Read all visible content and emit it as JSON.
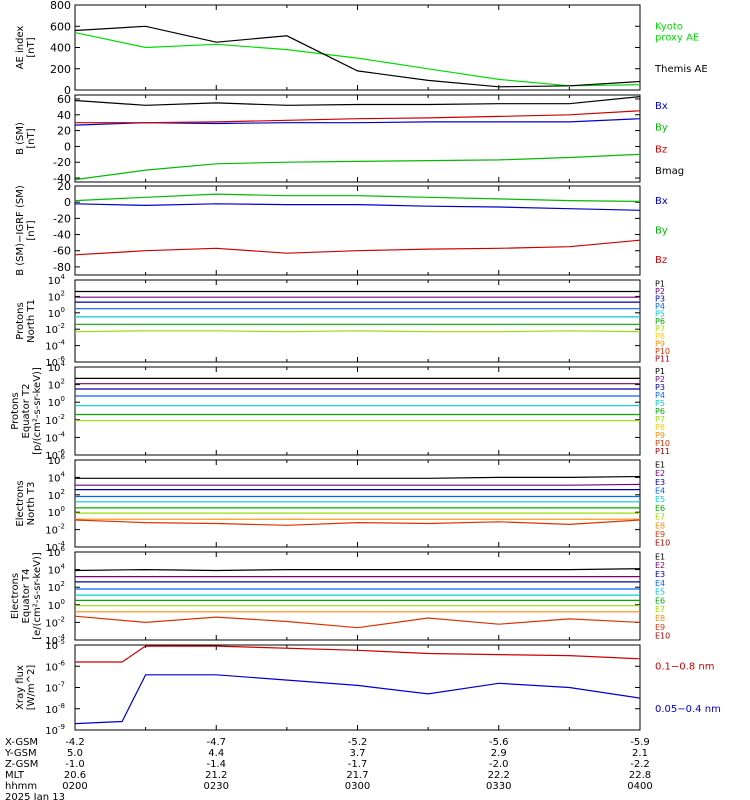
{
  "chart_data": [
    {
      "type": "line",
      "ylabel": "AE index\n[nT]",
      "ylim": [
        0,
        800
      ],
      "yscale": "linear",
      "yticks": [
        "800",
        "600",
        "400",
        "200",
        "0"
      ],
      "x": [
        "0200",
        "0215",
        "0230",
        "0245",
        "0300",
        "0315",
        "0330",
        "0345",
        "0400"
      ],
      "series": [
        {
          "name": "Kyoto\nproxy AE",
          "color": "#00dd00",
          "values": [
            540,
            400,
            430,
            380,
            300,
            200,
            100,
            40,
            50
          ]
        },
        {
          "name": "Themis AE",
          "color": "#000000",
          "values": [
            560,
            600,
            450,
            510,
            180,
            90,
            30,
            40,
            80
          ]
        }
      ]
    },
    {
      "type": "line",
      "ylabel": "B  (SM)\n[nT]",
      "ylim": [
        -45,
        65
      ],
      "yscale": "linear",
      "yticks": [
        "60",
        "40",
        "20",
        "0",
        "-20",
        "-40"
      ],
      "x": [
        "0200",
        "0215",
        "0230",
        "0245",
        "0300",
        "0315",
        "0330",
        "0345",
        "0400"
      ],
      "series": [
        {
          "name": "Bx",
          "color": "#0000cc",
          "values": [
            27,
            30,
            29,
            30,
            30,
            31,
            31,
            31,
            35
          ]
        },
        {
          "name": "By",
          "color": "#00bb00",
          "values": [
            -42,
            -30,
            -22,
            -20,
            -19,
            -18,
            -17,
            -14,
            -10
          ]
        },
        {
          "name": "Bz",
          "color": "#cc0000",
          "values": [
            30,
            30,
            31,
            33,
            35,
            36,
            38,
            40,
            45
          ]
        },
        {
          "name": "Bmag",
          "color": "#000000",
          "values": [
            58,
            52,
            55,
            52,
            53,
            53,
            54,
            54,
            63
          ]
        }
      ]
    },
    {
      "type": "line",
      "ylabel": "B (SM)−IGRF (SM)\n[nT]",
      "ylim": [
        -90,
        20
      ],
      "yscale": "linear",
      "yticks": [
        "20",
        "0",
        "-20",
        "-40",
        "-60",
        "-80"
      ],
      "x": [
        "0200",
        "0215",
        "0230",
        "0245",
        "0300",
        "0315",
        "0330",
        "0345",
        "0400"
      ],
      "series": [
        {
          "name": "Bx",
          "color": "#0000cc",
          "values": [
            -2,
            -4,
            -2,
            -3,
            -3,
            -5,
            -6,
            -8,
            -10
          ]
        },
        {
          "name": "By",
          "color": "#00bb00",
          "values": [
            2,
            6,
            10,
            8,
            8,
            6,
            4,
            2,
            1
          ]
        },
        {
          "name": "Bz",
          "color": "#cc0000",
          "values": [
            -65,
            -60,
            -57,
            -63,
            -60,
            -58,
            -57,
            -55,
            -47
          ]
        }
      ]
    },
    {
      "type": "line",
      "ylabel": "Protons\nNorth T1",
      "ylim": [
        -6,
        4
      ],
      "yscale": "log",
      "yticks": [
        "4",
        "2",
        "0",
        "-2",
        "-4",
        "-6"
      ],
      "x": [
        "0200",
        "0215",
        "0230",
        "0245",
        "0300",
        "0315",
        "0330",
        "0345",
        "0400"
      ],
      "series": [
        {
          "name": "P1",
          "color": "#000000",
          "values": [
            2.6,
            2.6,
            2.6,
            2.6,
            2.6,
            2.6,
            2.6,
            2.6,
            2.6
          ]
        },
        {
          "name": "P2",
          "color": "#770077",
          "values": [
            1.9,
            1.9,
            1.9,
            1.9,
            1.9,
            1.9,
            1.9,
            1.9,
            1.9
          ]
        },
        {
          "name": "P3",
          "color": "#0000aa",
          "values": [
            1.3,
            1.3,
            1.3,
            1.3,
            1.3,
            1.3,
            1.3,
            1.3,
            1.3
          ]
        },
        {
          "name": "P4",
          "color": "#0066ff",
          "values": [
            0.5,
            0.5,
            0.5,
            0.5,
            0.5,
            0.5,
            0.5,
            0.5,
            0.5
          ]
        },
        {
          "name": "P5",
          "color": "#00cccc",
          "values": [
            -0.5,
            -0.5,
            -0.5,
            -0.5,
            -0.5,
            -0.5,
            -0.5,
            -0.5,
            -0.5
          ]
        },
        {
          "name": "P6",
          "color": "#00aa00",
          "values": [
            -1.4,
            -1.4,
            -1.4,
            -1.4,
            -1.4,
            -1.4,
            -1.4,
            -1.4,
            -1.4
          ]
        },
        {
          "name": "P7",
          "color": "#99dd00",
          "values": [
            -2.3,
            -2.2,
            -2.2,
            -2.3,
            -2.2,
            -2.3,
            -2.3,
            -2.2,
            -2.3
          ]
        },
        {
          "name": "P8",
          "color": "#ffcc00",
          "values": [
            -3.4,
            null,
            null,
            null,
            -3.5,
            null,
            -3.4,
            null,
            -3.5
          ]
        },
        {
          "name": "P9",
          "color": "#ff8800",
          "values": [
            null,
            null,
            null,
            null,
            null,
            null,
            null,
            null,
            null
          ]
        },
        {
          "name": "P10",
          "color": "#dd3300",
          "values": [
            null,
            null,
            null,
            null,
            null,
            null,
            null,
            null,
            null
          ]
        },
        {
          "name": "P11",
          "color": "#aa0000",
          "values": [
            null,
            null,
            null,
            null,
            null,
            null,
            null,
            null,
            null
          ]
        }
      ]
    },
    {
      "type": "line",
      "ylabel": "Protons\nEquator T2\n[p/(cm²-s-sr-keV)]",
      "ylim": [
        -6,
        4
      ],
      "yscale": "log",
      "yticks": [
        "4",
        "2",
        "0",
        "-2",
        "-4",
        "-6"
      ],
      "x": [
        "0200",
        "0215",
        "0230",
        "0245",
        "0300",
        "0315",
        "0330",
        "0345",
        "0400"
      ],
      "series": [
        {
          "name": "P1",
          "color": "#000000",
          "values": [
            2.7,
            2.7,
            2.7,
            2.7,
            2.7,
            2.7,
            2.7,
            2.7,
            2.7
          ]
        },
        {
          "name": "P2",
          "color": "#770077",
          "values": [
            2.1,
            2.1,
            2.1,
            2.1,
            2.1,
            2.1,
            2.1,
            2.1,
            2.1
          ]
        },
        {
          "name": "P3",
          "color": "#0000aa",
          "values": [
            1.5,
            1.5,
            1.5,
            1.5,
            1.5,
            1.5,
            1.5,
            1.5,
            1.5
          ]
        },
        {
          "name": "P4",
          "color": "#0066ff",
          "values": [
            0.7,
            0.7,
            0.7,
            0.7,
            0.7,
            0.7,
            0.7,
            0.7,
            0.7
          ]
        },
        {
          "name": "P5",
          "color": "#00cccc",
          "values": [
            -0.4,
            -0.4,
            -0.4,
            -0.4,
            -0.4,
            -0.4,
            -0.4,
            -0.4,
            -0.4
          ]
        },
        {
          "name": "P6",
          "color": "#00aa00",
          "values": [
            -1.4,
            -1.4,
            -1.4,
            -1.4,
            -1.4,
            -1.4,
            -1.4,
            -1.4,
            -1.4
          ]
        },
        {
          "name": "P7",
          "color": "#99dd00",
          "values": [
            -2.1,
            -2.1,
            -2.1,
            -2.1,
            -2.1,
            -2.1,
            -2.1,
            -2.1,
            -2.1
          ]
        },
        {
          "name": "P8",
          "color": "#ffcc00",
          "values": [
            -3.4,
            null,
            -3.3,
            null,
            null,
            -3.5,
            null,
            -3.4,
            null
          ]
        },
        {
          "name": "P9",
          "color": "#ff8800",
          "values": [
            null,
            null,
            null,
            null,
            null,
            null,
            null,
            null,
            null
          ]
        },
        {
          "name": "P10",
          "color": "#dd3300",
          "values": [
            null,
            null,
            null,
            null,
            null,
            null,
            null,
            null,
            null
          ]
        },
        {
          "name": "P11",
          "color": "#aa0000",
          "values": [
            null,
            null,
            null,
            null,
            null,
            null,
            null,
            null,
            null
          ]
        }
      ]
    },
    {
      "type": "line",
      "ylabel": "Electrons\nNorth T3",
      "ylim": [
        -4,
        6
      ],
      "yscale": "log",
      "yticks": [
        "6",
        "4",
        "2",
        "0",
        "-2",
        "-4"
      ],
      "x": [
        "0200",
        "0215",
        "0230",
        "0245",
        "0300",
        "0315",
        "0330",
        "0345",
        "0400"
      ],
      "series": [
        {
          "name": "E1",
          "color": "#000000",
          "values": [
            3.9,
            3.9,
            3.9,
            3.9,
            3.9,
            3.9,
            4.0,
            4.0,
            4.1
          ]
        },
        {
          "name": "E2",
          "color": "#770077",
          "values": [
            3.1,
            3.1,
            3.1,
            3.1,
            3.1,
            3.1,
            3.1,
            3.1,
            3.2
          ]
        },
        {
          "name": "E3",
          "color": "#0000aa",
          "values": [
            2.6,
            2.6,
            2.6,
            2.6,
            2.6,
            2.6,
            2.6,
            2.6,
            2.6
          ]
        },
        {
          "name": "E4",
          "color": "#0066ff",
          "values": [
            1.8,
            1.8,
            1.8,
            1.8,
            1.8,
            1.8,
            1.8,
            1.8,
            1.8
          ]
        },
        {
          "name": "E5",
          "color": "#00cccc",
          "values": [
            1.2,
            1.2,
            1.2,
            1.2,
            1.2,
            1.2,
            1.2,
            1.2,
            1.2
          ]
        },
        {
          "name": "E6",
          "color": "#00aa00",
          "values": [
            0.5,
            0.5,
            0.5,
            0.5,
            0.5,
            0.5,
            0.5,
            0.5,
            0.5
          ]
        },
        {
          "name": "E7",
          "color": "#99dd00",
          "values": [
            -0.1,
            -0.1,
            -0.1,
            -0.1,
            -0.1,
            -0.1,
            -0.1,
            -0.1,
            -0.1
          ]
        },
        {
          "name": "E8",
          "color": "#ff8800",
          "values": [
            -0.8,
            -0.8,
            -0.8,
            -0.8,
            -0.8,
            -0.8,
            -0.8,
            -0.8,
            -0.8
          ]
        },
        {
          "name": "E9",
          "color": "#dd3300",
          "values": [
            -0.9,
            -1.2,
            -1.3,
            -1.5,
            -1.2,
            -1.3,
            -1.1,
            -1.4,
            -0.9
          ]
        },
        {
          "name": "E10",
          "color": "#aa0000",
          "values": [
            null,
            null,
            null,
            null,
            null,
            null,
            null,
            null,
            null
          ]
        }
      ]
    },
    {
      "type": "line",
      "ylabel": "Electrons\nEquator T4\n[e/(cm²-s-sr-keV)]",
      "ylim": [
        -4,
        6
      ],
      "yscale": "log",
      "yticks": [
        "6",
        "4",
        "2",
        "0",
        "-2",
        "-4"
      ],
      "x": [
        "0200",
        "0215",
        "0230",
        "0245",
        "0300",
        "0315",
        "0330",
        "0345",
        "0400"
      ],
      "series": [
        {
          "name": "E1",
          "color": "#000000",
          "values": [
            3.9,
            4.0,
            3.9,
            4.0,
            4.0,
            4.0,
            4.0,
            4.0,
            4.1
          ]
        },
        {
          "name": "E2",
          "color": "#770077",
          "values": [
            3.2,
            3.2,
            3.2,
            3.2,
            3.2,
            3.2,
            3.2,
            3.2,
            3.2
          ]
        },
        {
          "name": "E3",
          "color": "#0000aa",
          "values": [
            2.6,
            2.6,
            2.6,
            2.6,
            2.6,
            2.6,
            2.6,
            2.6,
            2.6
          ]
        },
        {
          "name": "E4",
          "color": "#0066ff",
          "values": [
            1.8,
            1.8,
            1.8,
            1.8,
            1.8,
            1.8,
            1.8,
            1.8,
            1.8
          ]
        },
        {
          "name": "E5",
          "color": "#00cccc",
          "values": [
            1.1,
            1.1,
            1.1,
            1.1,
            1.1,
            1.1,
            1.1,
            1.1,
            1.1
          ]
        },
        {
          "name": "E6",
          "color": "#00aa00",
          "values": [
            0.5,
            0.5,
            0.5,
            0.5,
            0.5,
            0.5,
            0.5,
            0.5,
            0.5
          ]
        },
        {
          "name": "E7",
          "color": "#99dd00",
          "values": [
            -0.1,
            -0.1,
            -0.1,
            -0.1,
            -0.1,
            -0.1,
            -0.1,
            -0.1,
            -0.1
          ]
        },
        {
          "name": "E8",
          "color": "#ff8800",
          "values": [
            -0.8,
            -0.8,
            -0.8,
            -0.8,
            -0.8,
            -0.8,
            -0.8,
            -0.8,
            -0.8
          ]
        },
        {
          "name": "E9",
          "color": "#dd3300",
          "values": [
            -1.3,
            -2.0,
            -1.4,
            -1.9,
            -2.6,
            -1.5,
            -2.2,
            -1.6,
            -2.0
          ]
        },
        {
          "name": "E10",
          "color": "#aa0000",
          "values": [
            null,
            null,
            null,
            null,
            null,
            null,
            null,
            null,
            null
          ]
        }
      ]
    },
    {
      "type": "line",
      "ylabel": "Xray flux\n[W/m^2]",
      "ylim": [
        -9,
        -5
      ],
      "yscale": "log",
      "yticks": [
        "-5",
        "-6",
        "-7",
        "-8",
        "-9"
      ],
      "x": [
        "0200",
        "0210",
        "0215",
        "0230",
        "0300",
        "0315",
        "0330",
        "0345",
        "0400"
      ],
      "series": [
        {
          "name": "0.1−0.8 nm",
          "color": "#cc0000",
          "values": [
            -5.8,
            -5.8,
            -5.02,
            -5.05,
            -5.25,
            -5.4,
            -5.45,
            -5.5,
            -5.65
          ]
        },
        {
          "name": "0.05−0.4 nm",
          "color": "#0000cc",
          "values": [
            -8.7,
            -8.6,
            -6.4,
            -6.4,
            -6.9,
            -7.3,
            -6.8,
            -7.0,
            -7.5
          ]
        }
      ]
    }
  ],
  "footer": {
    "rows": [
      {
        "label": "X-GSM",
        "values": [
          "-4.2",
          "-4.7",
          "-5.2",
          "-5.6",
          "-5.9"
        ]
      },
      {
        "label": "Y-GSM",
        "values": [
          "5.0",
          "4.4",
          "3.7",
          "2.9",
          "2.1"
        ]
      },
      {
        "label": "Z-GSM",
        "values": [
          "-1.0",
          "-1.4",
          "-1.7",
          "-2.0",
          "-2.2"
        ]
      },
      {
        "label": "MLT",
        "values": [
          "20.6",
          "21.2",
          "21.7",
          "22.2",
          "22.8"
        ]
      },
      {
        "label": "hhmm",
        "values": [
          "0200",
          "0230",
          "0300",
          "0330",
          "0400"
        ]
      }
    ],
    "date": "2025 Jan 13"
  }
}
